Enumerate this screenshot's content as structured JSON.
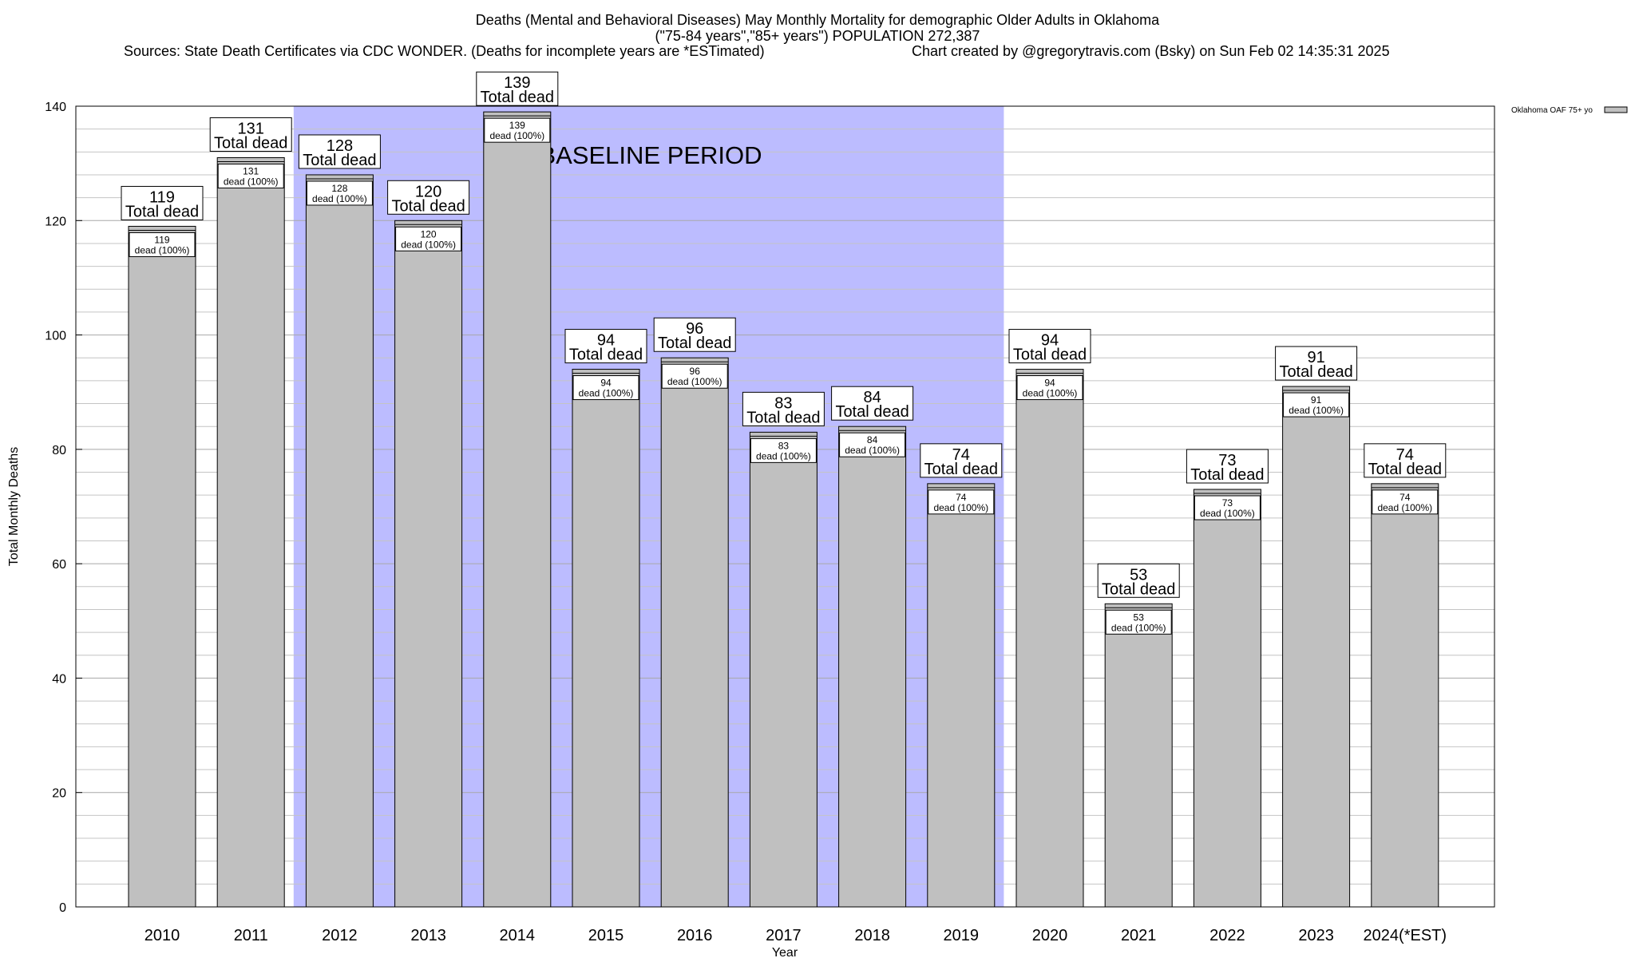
{
  "header": {
    "title_line1": "Deaths (Mental and Behavioral Diseases) May Monthly Mortality for demographic Older Adults in Oklahoma",
    "title_line2": "(\"75-84 years\",\"85+ years\") POPULATION 272,387",
    "sources": "Sources: State Death Certificates via CDC WONDER. (Deaths for incomplete years are *ESTimated)",
    "credit": "Chart created by @gregorytravis.com (Bsky) on Sun Feb 02 14:35:31 2025"
  },
  "chart_data": {
    "type": "bar",
    "xlabel": "Year",
    "ylabel": "Total Monthly Deaths",
    "ylim": [
      0,
      140
    ],
    "yticks": [
      0,
      20,
      40,
      60,
      80,
      100,
      120,
      140
    ],
    "grid": true,
    "categories": [
      "2010",
      "2011",
      "2012",
      "2013",
      "2014",
      "2015",
      "2016",
      "2017",
      "2018",
      "2019",
      "2020",
      "2021",
      "2022",
      "2023",
      "2024(*EST)"
    ],
    "series": [
      {
        "name": "Oklahoma OAF 75+ yo",
        "color": "#c0c0c0",
        "values": [
          119,
          131,
          128,
          120,
          139,
          94,
          96,
          83,
          84,
          74,
          94,
          53,
          73,
          91,
          74
        ]
      }
    ],
    "total_label_suffix": "Total dead",
    "inner_label_suffix": "dead (100%)",
    "baseline": {
      "label": "BASELINE PERIOD",
      "color": "#bcbcff",
      "from_category": "2012",
      "to_category": "2019"
    },
    "legend": {
      "position": "top-right",
      "entries": [
        "Oklahoma OAF 75+ yo"
      ]
    }
  }
}
